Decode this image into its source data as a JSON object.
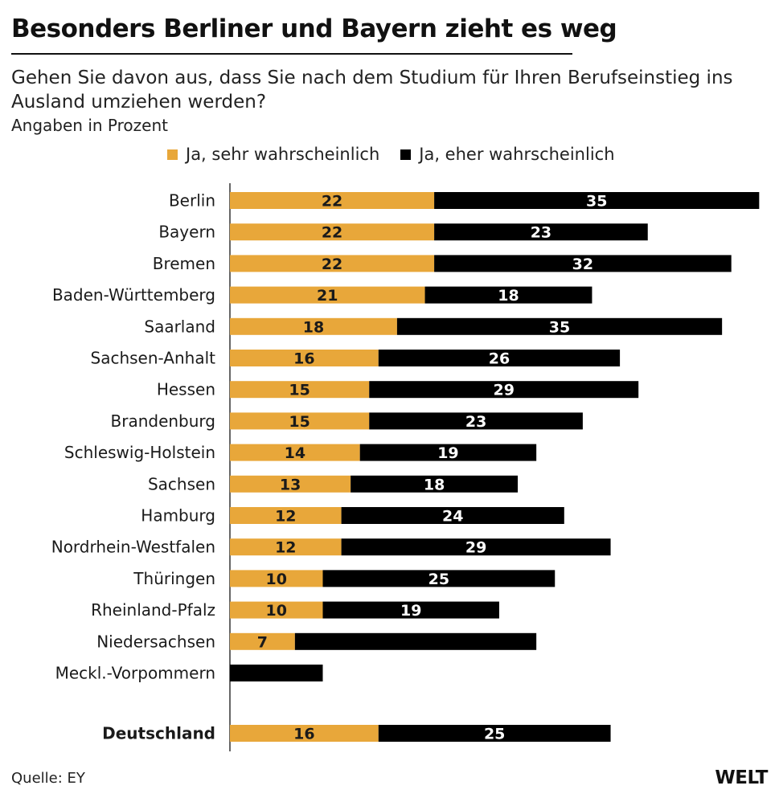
{
  "header": {
    "title": "Besonders Berliner und Bayern zieht es weg",
    "subtitle": "Gehen Sie davon aus, dass Sie nach dem Studium für Ihren Berufseinstieg ins Ausland umziehen werden?",
    "units": "Angaben in Prozent"
  },
  "footer": {
    "source": "Quelle: EY",
    "logo": "WELT"
  },
  "colors": {
    "orange": "#e8a73a",
    "black": "#000000"
  },
  "chart_data": {
    "type": "bar",
    "orientation": "horizontal",
    "stacked": true,
    "categories": [
      "Berlin",
      "Bayern",
      "Bremen",
      "Baden-Württemberg",
      "Saarland",
      "Sachsen-Anhalt",
      "Hessen",
      "Brandenburg",
      "Schleswig-Holstein",
      "Sachsen",
      "Hamburg",
      "Nordrhein-Westfalen",
      "Thüringen",
      "Rheinland-Pfalz",
      "Niedersachsen",
      "Meckl.-Vorpommern",
      "Deutschland"
    ],
    "highlight_category": "Deutschland",
    "series": [
      {
        "name": "Ja, sehr wahrscheinlich",
        "color": "#e8a73a",
        "values": [
          22,
          22,
          22,
          21,
          18,
          16,
          15,
          15,
          14,
          13,
          12,
          12,
          10,
          10,
          7,
          0,
          16
        ],
        "labels": [
          "22",
          "22",
          "22",
          "21",
          "18",
          "16",
          "15",
          "15",
          "14",
          "13",
          "12",
          "12",
          "10",
          "10",
          "7",
          "",
          "16"
        ]
      },
      {
        "name": "Ja, eher wahrscheinlich",
        "color": "#000000",
        "values": [
          35,
          23,
          32,
          18,
          35,
          26,
          29,
          23,
          19,
          18,
          24,
          29,
          25,
          19,
          26,
          10,
          25
        ],
        "labels": [
          "35",
          "23",
          "32",
          "18",
          "35",
          "26",
          "29",
          "23",
          "19",
          "18",
          "24",
          "29",
          "25",
          "19",
          "",
          "",
          "25"
        ]
      }
    ],
    "xlim": [
      0,
      57
    ],
    "legend": "top"
  }
}
